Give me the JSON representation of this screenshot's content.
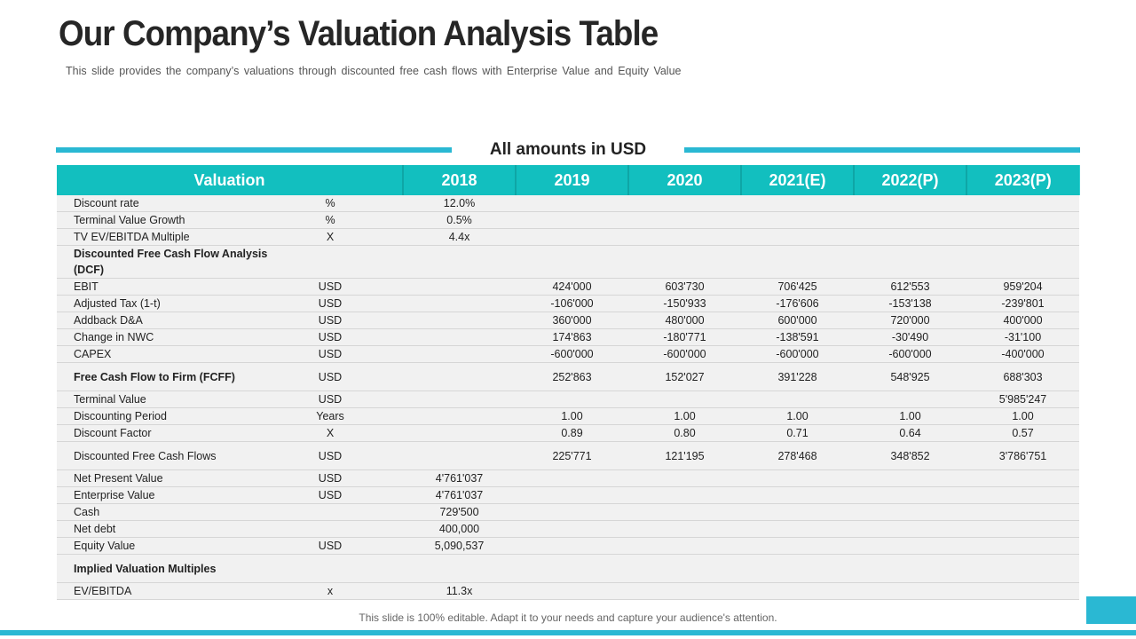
{
  "slide": {
    "title": "Our Company’s Valuation Analysis Table",
    "subtitle": "This slide provides the company’s valuations through discounted free cash flows with Enterprise Value and Equity Value",
    "amounts_label": "All amounts in USD",
    "footer": "This slide is 100% editable. Adapt it to your needs and capture your audience's attention.",
    "accent_color": "#2ab8d3",
    "header_color": "#12bfbf"
  },
  "table": {
    "headers": [
      "Valuation",
      "2018",
      "2019",
      "2020",
      "2021(E)",
      "2022(P)",
      "2023(P)"
    ],
    "rows": [
      {
        "label": "Discount rate",
        "unit": "%",
        "values": [
          "12.0%",
          "",
          "",
          "",
          "",
          ""
        ]
      },
      {
        "label": "Terminal Value Growth",
        "unit": "%",
        "values": [
          "0.5%",
          "",
          "",
          "",
          "",
          ""
        ]
      },
      {
        "label": "TV EV/EBITDA Multiple",
        "unit": "X",
        "values": [
          "4.4x",
          "",
          "",
          "",
          "",
          ""
        ]
      },
      {
        "label": "Discounted Free Cash Flow Analysis (DCF)",
        "unit": "",
        "values": [
          "",
          "",
          "",
          "",
          "",
          ""
        ],
        "bold": true,
        "tall": true
      },
      {
        "label": "EBIT",
        "unit": "USD",
        "values": [
          "",
          "424'000",
          "603'730",
          "706'425",
          "612'553",
          "959'204"
        ]
      },
      {
        "label": "Adjusted Tax  (1-t)",
        "unit": "USD",
        "values": [
          "",
          "-106'000",
          "-150'933",
          "-176'606",
          "-153'138",
          "-239'801"
        ]
      },
      {
        "label": "Addback D&A",
        "unit": "USD",
        "values": [
          "",
          "360'000",
          "480'000",
          "600'000",
          "720'000",
          "400'000"
        ]
      },
      {
        "label": "Change in NWC",
        "unit": "USD",
        "values": [
          "",
          "174'863",
          "-180'771",
          "-138'591",
          "-30'490",
          "-31'100"
        ]
      },
      {
        "label": "CAPEX",
        "unit": "USD",
        "values": [
          "",
          "-600'000",
          "-600'000",
          "-600'000",
          "-600'000",
          "-400'000"
        ]
      },
      {
        "label": "Free Cash Flow to Firm (FCFF)",
        "unit": "USD",
        "values": [
          "",
          "252'863",
          "152'027",
          "391'228",
          "548'925",
          "688'303"
        ],
        "bold": true,
        "tall": true
      },
      {
        "label": "Terminal Value",
        "unit": "USD",
        "values": [
          "",
          "",
          "",
          "",
          "",
          "5'985'247"
        ]
      },
      {
        "label": "Discounting Period",
        "unit": "Years",
        "values": [
          "",
          "1.00",
          "1.00",
          "1.00",
          "1.00",
          "1.00"
        ]
      },
      {
        "label": "Discount Factor",
        "unit": "X",
        "values": [
          "",
          "0.89",
          "0.80",
          "0.71",
          "0.64",
          "0.57"
        ]
      },
      {
        "label": "Discounted Free Cash Flows",
        "unit": "USD",
        "values": [
          "",
          "225'771",
          "121'195",
          "278'468",
          "348'852",
          "3'786'751"
        ],
        "tall": true
      },
      {
        "label": "Net Present Value",
        "unit": "USD",
        "values": [
          "4'761'037",
          "",
          "",
          "",
          "",
          ""
        ]
      },
      {
        "label": "Enterprise Value",
        "unit": "USD",
        "values": [
          "4'761'037",
          "",
          "",
          "",
          "",
          ""
        ]
      },
      {
        "label": "Cash",
        "unit": "",
        "values": [
          "729'500",
          "",
          "",
          "",
          "",
          ""
        ]
      },
      {
        "label": "Net debt",
        "unit": "",
        "values": [
          "400,000",
          "",
          "",
          "",
          "",
          ""
        ]
      },
      {
        "label": "Equity Value",
        "unit": "USD",
        "values": [
          "5,090,537",
          "",
          "",
          "",
          "",
          ""
        ]
      },
      {
        "label": "Implied Valuation Multiples",
        "unit": "",
        "values": [
          "",
          "",
          "",
          "",
          "",
          ""
        ],
        "bold": true,
        "tall": true
      },
      {
        "label": "EV/EBITDA",
        "unit": "x",
        "values": [
          "11.3x",
          "",
          "",
          "",
          "",
          ""
        ]
      }
    ]
  }
}
